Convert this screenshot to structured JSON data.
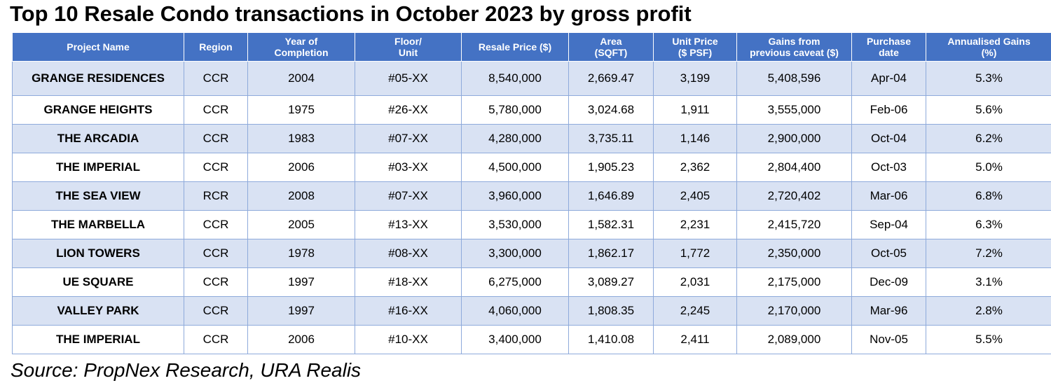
{
  "title": "Top 10 Resale Condo transactions in October 2023 by gross profit",
  "source": "Source: PropNex Research, URA Realis",
  "chart_data": {
    "type": "table",
    "columns": [
      "Project Name",
      "Region",
      "Year of\nCompletion",
      "Floor/\nUnit",
      "Resale Price ($)",
      "Area\n(SQFT)",
      "Unit Price\n($ PSF)",
      "Gains from\nprevious caveat ($)",
      "Purchase\ndate",
      "Annualised Gains\n(%)"
    ],
    "rows": [
      [
        "GRANGE RESIDENCES",
        "CCR",
        "2004",
        "#05-XX",
        "8,540,000",
        "2,669.47",
        "3,199",
        "5,408,596",
        "Apr-04",
        "5.3%"
      ],
      [
        "GRANGE HEIGHTS",
        "CCR",
        "1975",
        "#26-XX",
        "5,780,000",
        "3,024.68",
        "1,911",
        "3,555,000",
        "Feb-06",
        "5.6%"
      ],
      [
        "THE ARCADIA",
        "CCR",
        "1983",
        "#07-XX",
        "4,280,000",
        "3,735.11",
        "1,146",
        "2,900,000",
        "Oct-04",
        "6.2%"
      ],
      [
        "THE IMPERIAL",
        "CCR",
        "2006",
        "#03-XX",
        "4,500,000",
        "1,905.23",
        "2,362",
        "2,804,400",
        "Oct-03",
        "5.0%"
      ],
      [
        "THE SEA VIEW",
        "RCR",
        "2008",
        "#07-XX",
        "3,960,000",
        "1,646.89",
        "2,405",
        "2,720,402",
        "Mar-06",
        "6.8%"
      ],
      [
        "THE MARBELLA",
        "CCR",
        "2005",
        "#13-XX",
        "3,530,000",
        "1,582.31",
        "2,231",
        "2,415,720",
        "Sep-04",
        "6.3%"
      ],
      [
        "LION TOWERS",
        "CCR",
        "1978",
        "#08-XX",
        "3,300,000",
        "1,862.17",
        "1,772",
        "2,350,000",
        "Oct-05",
        "7.2%"
      ],
      [
        "UE SQUARE",
        "CCR",
        "1997",
        "#18-XX",
        "6,275,000",
        "3,089.27",
        "2,031",
        "2,175,000",
        "Dec-09",
        "3.1%"
      ],
      [
        "VALLEY PARK",
        "CCR",
        "1997",
        "#16-XX",
        "4,060,000",
        "1,808.35",
        "2,245",
        "2,170,000",
        "Mar-96",
        "2.8%"
      ],
      [
        "THE IMPERIAL",
        "CCR",
        "2006",
        "#10-XX",
        "3,400,000",
        "1,410.08",
        "2,411",
        "2,089,000",
        "Nov-05",
        "5.5%"
      ]
    ],
    "header_color": "#4472c4",
    "band_color": "#d9e2f3",
    "border_color": "#8eaadb"
  }
}
